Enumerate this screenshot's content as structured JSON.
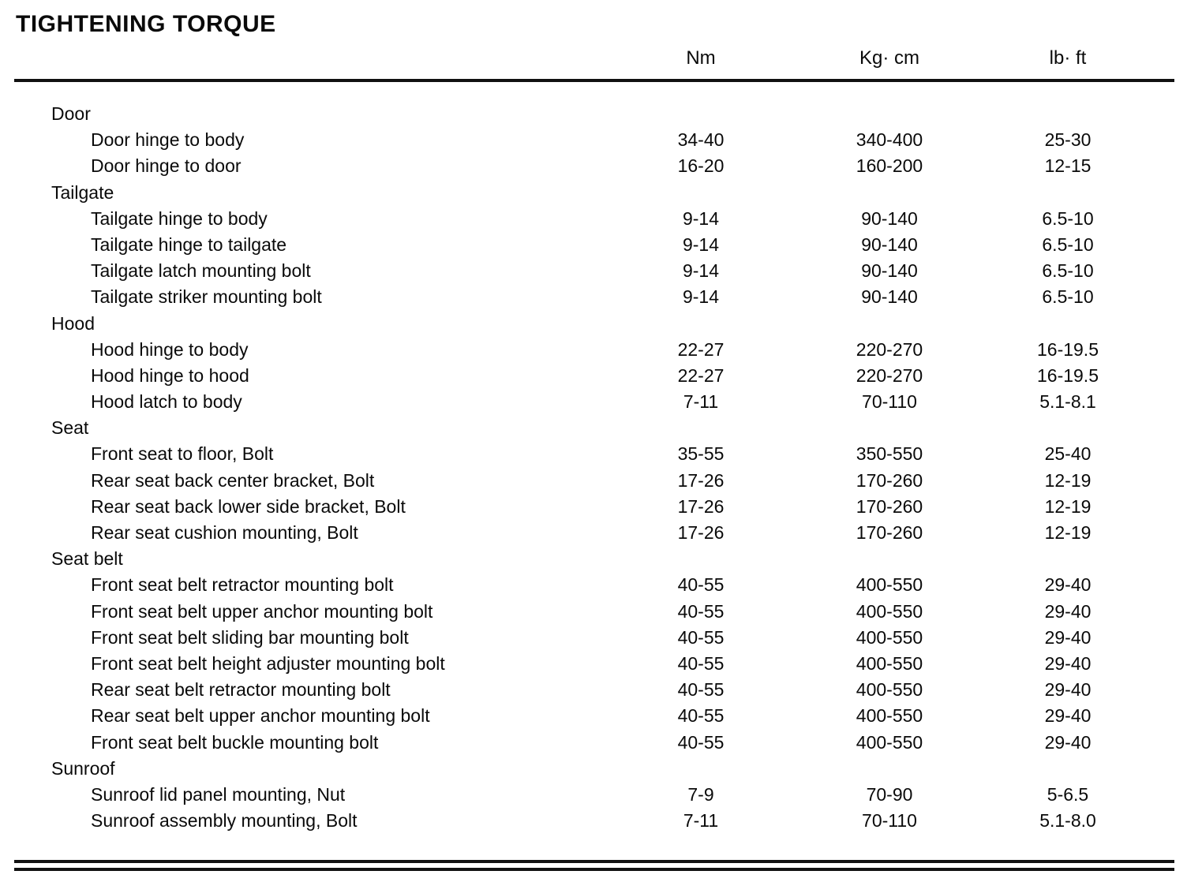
{
  "page": {
    "title": "TIGHTENING TORQUE"
  },
  "table": {
    "columns": [
      "Nm",
      "Kg· cm",
      "lb· ft"
    ],
    "sections": [
      {
        "name": "Door",
        "rows": [
          {
            "label": "Door hinge to body",
            "values": [
              "34-40",
              "340-400",
              "25-30"
            ]
          },
          {
            "label": "Door hinge to door",
            "values": [
              "16-20",
              "160-200",
              "12-15"
            ]
          }
        ]
      },
      {
        "name": "Tailgate",
        "rows": [
          {
            "label": "Tailgate hinge to body",
            "values": [
              "9-14",
              "90-140",
              "6.5-10"
            ]
          },
          {
            "label": "Tailgate hinge to tailgate",
            "values": [
              "9-14",
              "90-140",
              "6.5-10"
            ]
          },
          {
            "label": "Tailgate latch mounting bolt",
            "values": [
              "9-14",
              "90-140",
              "6.5-10"
            ]
          },
          {
            "label": "Tailgate striker mounting bolt",
            "values": [
              "9-14",
              "90-140",
              "6.5-10"
            ]
          }
        ]
      },
      {
        "name": "Hood",
        "rows": [
          {
            "label": "Hood hinge to body",
            "values": [
              "22-27",
              "220-270",
              "16-19.5"
            ]
          },
          {
            "label": "Hood hinge to hood",
            "values": [
              "22-27",
              "220-270",
              "16-19.5"
            ]
          },
          {
            "label": "Hood latch to body",
            "values": [
              "7-11",
              "70-110",
              "5.1-8.1"
            ]
          }
        ]
      },
      {
        "name": "Seat",
        "rows": [
          {
            "label": "Front seat to floor, Bolt",
            "values": [
              "35-55",
              "350-550",
              "25-40"
            ]
          },
          {
            "label": "Rear seat back center bracket, Bolt",
            "values": [
              "17-26",
              "170-260",
              "12-19"
            ]
          },
          {
            "label": "Rear seat back lower side bracket, Bolt",
            "values": [
              "17-26",
              "170-260",
              "12-19"
            ]
          },
          {
            "label": "Rear seat cushion mounting, Bolt",
            "values": [
              "17-26",
              "170-260",
              "12-19"
            ]
          }
        ]
      },
      {
        "name": "Seat belt",
        "rows": [
          {
            "label": "Front seat belt retractor mounting bolt",
            "values": [
              "40-55",
              "400-550",
              "29-40"
            ]
          },
          {
            "label": "Front seat belt upper anchor mounting bolt",
            "values": [
              "40-55",
              "400-550",
              "29-40"
            ]
          },
          {
            "label": "Front seat belt sliding bar mounting bolt",
            "values": [
              "40-55",
              "400-550",
              "29-40"
            ]
          },
          {
            "label": "Front seat belt height adjuster mounting bolt",
            "values": [
              "40-55",
              "400-550",
              "29-40"
            ]
          },
          {
            "label": "Rear seat belt retractor mounting bolt",
            "values": [
              "40-55",
              "400-550",
              "29-40"
            ]
          },
          {
            "label": "Rear seat belt upper anchor mounting bolt",
            "values": [
              "40-55",
              "400-550",
              "29-40"
            ]
          },
          {
            "label": "Front seat belt buckle mounting bolt",
            "values": [
              "40-55",
              "400-550",
              "29-40"
            ]
          }
        ]
      },
      {
        "name": "Sunroof",
        "rows": [
          {
            "label": "Sunroof lid panel mounting, Nut",
            "values": [
              "7-9",
              "70-90",
              "5-6.5"
            ]
          },
          {
            "label": "Sunroof assembly mounting, Bolt",
            "values": [
              "7-11",
              "70-110",
              "5.1-8.0"
            ]
          }
        ]
      }
    ]
  }
}
